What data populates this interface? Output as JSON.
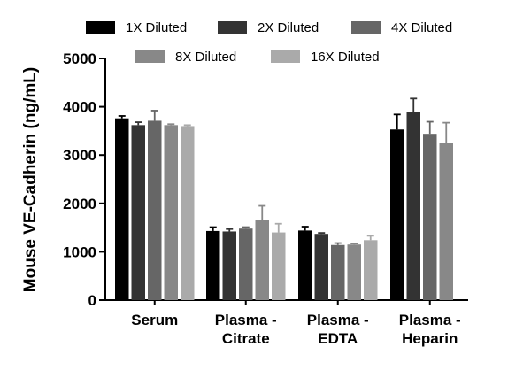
{
  "chart_data": {
    "type": "bar",
    "title": "",
    "xlabel": "",
    "ylabel": "Mouse VE-Cadherin (ng/mL)",
    "ylim": [
      0,
      5000
    ],
    "yticks": [
      0,
      1000,
      2000,
      3000,
      4000,
      5000
    ],
    "grid": false,
    "legend_position": "top",
    "categories": [
      [
        "Serum"
      ],
      [
        "Plasma -",
        "Citrate"
      ],
      [
        "Plasma -",
        "EDTA"
      ],
      [
        "Plasma -",
        "Heparin"
      ]
    ],
    "series": [
      {
        "name": "1X Diluted",
        "color": "#000000",
        "values": [
          3760,
          1430,
          1440,
          3530
        ],
        "errors": [
          50,
          80,
          80,
          310
        ]
      },
      {
        "name": "2X Diluted",
        "color": "#333333",
        "values": [
          3620,
          1420,
          1370,
          3900
        ],
        "errors": [
          60,
          50,
          20,
          270
        ]
      },
      {
        "name": "4X Diluted",
        "color": "#666666",
        "values": [
          3710,
          1480,
          1140,
          3440
        ],
        "errors": [
          210,
          30,
          40,
          250
        ]
      },
      {
        "name": "8X Diluted",
        "color": "#888888",
        "values": [
          3620,
          1660,
          1150,
          3250
        ],
        "errors": [
          20,
          290,
          20,
          420
        ]
      },
      {
        "name": "16X Diluted",
        "color": "#aaaaaa",
        "values": [
          3600,
          1400,
          1240,
          0
        ],
        "errors": [
          20,
          180,
          90,
          0
        ]
      }
    ]
  }
}
